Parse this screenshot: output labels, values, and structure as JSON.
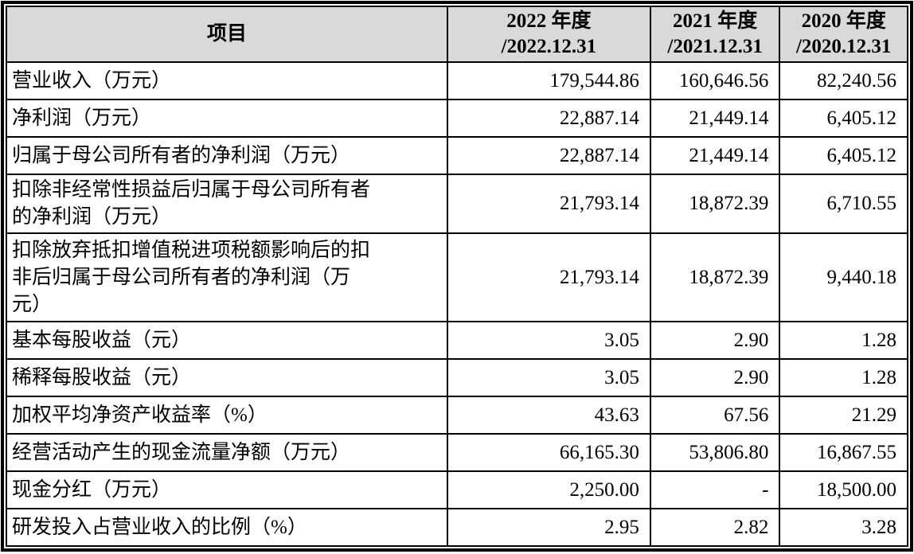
{
  "table": {
    "header": {
      "item_label": "项目",
      "periods": [
        "2022 年度\n/2022.12.31",
        "2021 年度\n/2021.12.31",
        "2020 年度\n/2020.12.31"
      ]
    },
    "rows": [
      {
        "label": "营业收入（万元）",
        "values": [
          "179,544.86",
          "160,646.56",
          "82,240.56"
        ]
      },
      {
        "label": "净利润（万元）",
        "values": [
          "22,887.14",
          "21,449.14",
          "6,405.12"
        ]
      },
      {
        "label": "归属于母公司所有者的净利润（万元）",
        "values": [
          "22,887.14",
          "21,449.14",
          "6,405.12"
        ]
      },
      {
        "label": "扣除非经常性损益后归属于母公司所有者\n的净利润（万元）",
        "values": [
          "21,793.14",
          "18,872.39",
          "6,710.55"
        ]
      },
      {
        "label": "扣除放弃抵扣增值税进项税额影响后的扣\n非后归属于母公司所有者的净利润（万\n元）",
        "values": [
          "21,793.14",
          "18,872.39",
          "9,440.18"
        ]
      },
      {
        "label": "基本每股收益（元）",
        "values": [
          "3.05",
          "2.90",
          "1.28"
        ]
      },
      {
        "label": "稀释每股收益（元）",
        "values": [
          "3.05",
          "2.90",
          "1.28"
        ]
      },
      {
        "label": "加权平均净资产收益率（%）",
        "values": [
          "43.63",
          "67.56",
          "21.29"
        ]
      },
      {
        "label": "经营活动产生的现金流量净额（万元）",
        "values": [
          "66,165.30",
          "53,806.80",
          "16,867.55"
        ]
      },
      {
        "label": "现金分红（万元）",
        "values": [
          "2,250.00",
          "-",
          "18,500.00"
        ]
      },
      {
        "label": "研发投入占营业收入的比例（%）",
        "values": [
          "2.95",
          "2.82",
          "3.28"
        ]
      }
    ]
  }
}
